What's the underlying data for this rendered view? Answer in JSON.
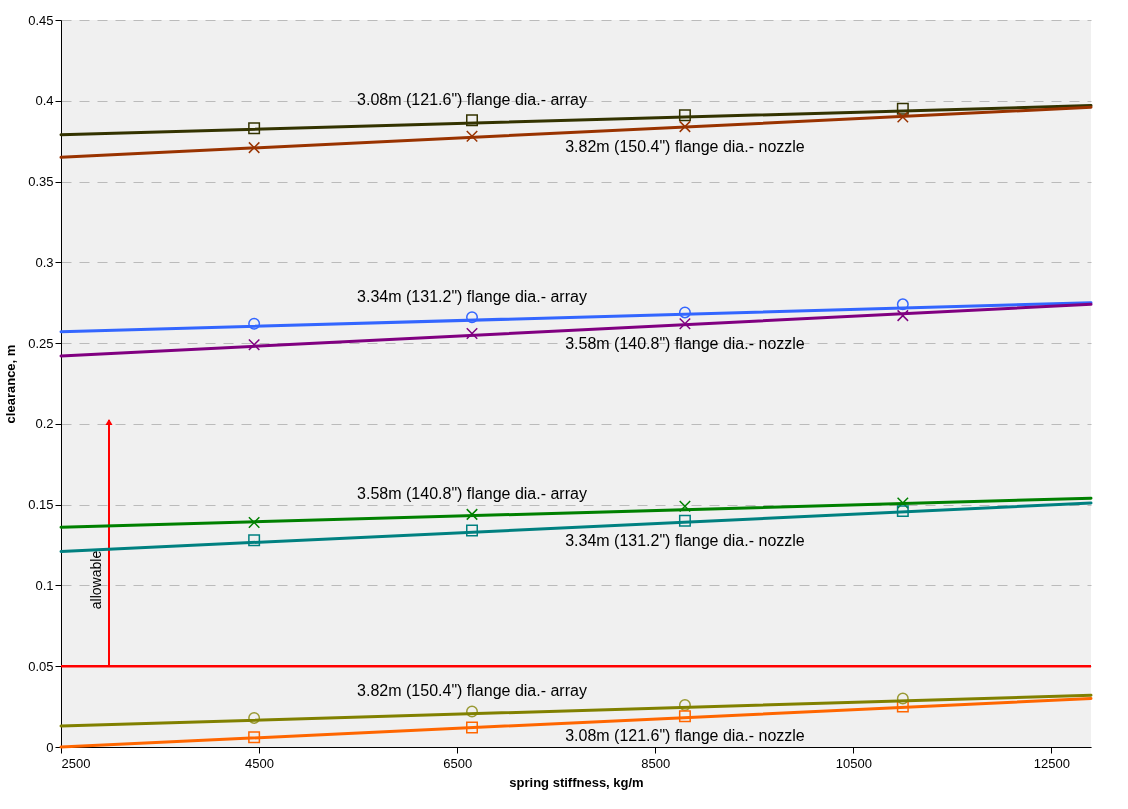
{
  "chart_data": {
    "type": "scatter",
    "xlabel": "spring stiffness, kg/m",
    "ylabel": "clearance,  m",
    "xlim": [
      2500,
      12900
    ],
    "ylim": [
      0,
      0.45
    ],
    "xticks": [
      2500,
      4500,
      6500,
      8500,
      10500,
      12500
    ],
    "yticks": [
      0,
      0.05,
      0.1,
      0.15,
      0.2,
      0.25,
      0.3,
      0.35,
      0.4,
      0.45
    ],
    "grid": "y",
    "annotations": [
      "allowable"
    ],
    "ref_lines": [
      {
        "axis": "y",
        "value": 0.05,
        "color": "#ff0000"
      }
    ],
    "series": [
      {
        "name": "3.08m (121.6\") flange dia.- array",
        "color": "#333300",
        "marker": "square",
        "x": [
          4450,
          6650,
          8800,
          11000
        ],
        "values": [
          0.383,
          0.388,
          0.391,
          0.395
        ]
      },
      {
        "name": "3.82m (150.4\") flange dia.- nozzle",
        "color": "#993300",
        "marker": "cross",
        "x": [
          4450,
          6650,
          8800,
          11000
        ],
        "values": [
          0.371,
          0.378,
          0.384,
          0.39
        ]
      },
      {
        "name": "3.34m (131.2\") flange dia.- array",
        "color": "#3366ff",
        "marker": "circle",
        "x": [
          4450,
          6650,
          8800,
          11000
        ],
        "values": [
          0.262,
          0.266,
          0.269,
          0.274
        ]
      },
      {
        "name": "3.58m (140.8\") flange dia.- nozzle",
        "color": "#800080",
        "marker": "cross",
        "x": [
          4450,
          6650,
          8800,
          11000
        ],
        "values": [
          0.249,
          0.256,
          0.262,
          0.267
        ]
      },
      {
        "name": "3.58m (140.8\") flange dia.- array",
        "color": "#008000",
        "marker": "cross",
        "x": [
          4450,
          6650,
          8800,
          11000
        ],
        "values": [
          0.139,
          0.144,
          0.149,
          0.151
        ]
      },
      {
        "name": "3.34m (131.2\") flange dia.- nozzle",
        "color": "#008080",
        "marker": "square",
        "x": [
          4450,
          6650,
          8800,
          11000
        ],
        "values": [
          0.128,
          0.134,
          0.14,
          0.146
        ]
      },
      {
        "name": "3.82m (150.4\") flange dia.- array",
        "color": "#999933",
        "marker": "circle",
        "x": [
          4450,
          6650,
          8800,
          11000
        ],
        "values": [
          0.018,
          0.022,
          0.026,
          0.03
        ]
      },
      {
        "name": "3.08m (121.6\") flange dia.- nozzle",
        "color": "#ff6600",
        "marker": "square",
        "x": [
          4450,
          6650,
          8800,
          11000
        ],
        "values": [
          0.006,
          0.012,
          0.019,
          0.025
        ]
      },
      {
        "type": "line",
        "color": "#333300",
        "x": [
          2500,
          12900
        ],
        "values": [
          0.379,
          0.397
        ]
      },
      {
        "type": "line",
        "color": "#993300",
        "x": [
          2500,
          12900
        ],
        "values": [
          0.365,
          0.396
        ]
      },
      {
        "type": "line",
        "color": "#3366ff",
        "x": [
          2500,
          12900
        ],
        "values": [
          0.257,
          0.275
        ]
      },
      {
        "type": "line",
        "color": "#800080",
        "x": [
          2500,
          12900
        ],
        "values": [
          0.242,
          0.274
        ]
      },
      {
        "type": "line",
        "color": "#008000",
        "x": [
          2500,
          12900
        ],
        "values": [
          0.136,
          0.154
        ]
      },
      {
        "type": "line",
        "color": "#008080",
        "x": [
          2500,
          12900
        ],
        "values": [
          0.121,
          0.151
        ]
      },
      {
        "type": "line",
        "color": "#808000",
        "x": [
          2500,
          12900
        ],
        "values": [
          0.013,
          0.032
        ]
      },
      {
        "type": "line",
        "color": "#ff6600",
        "x": [
          2500,
          12900
        ],
        "values": [
          0,
          0.03
        ]
      }
    ]
  }
}
